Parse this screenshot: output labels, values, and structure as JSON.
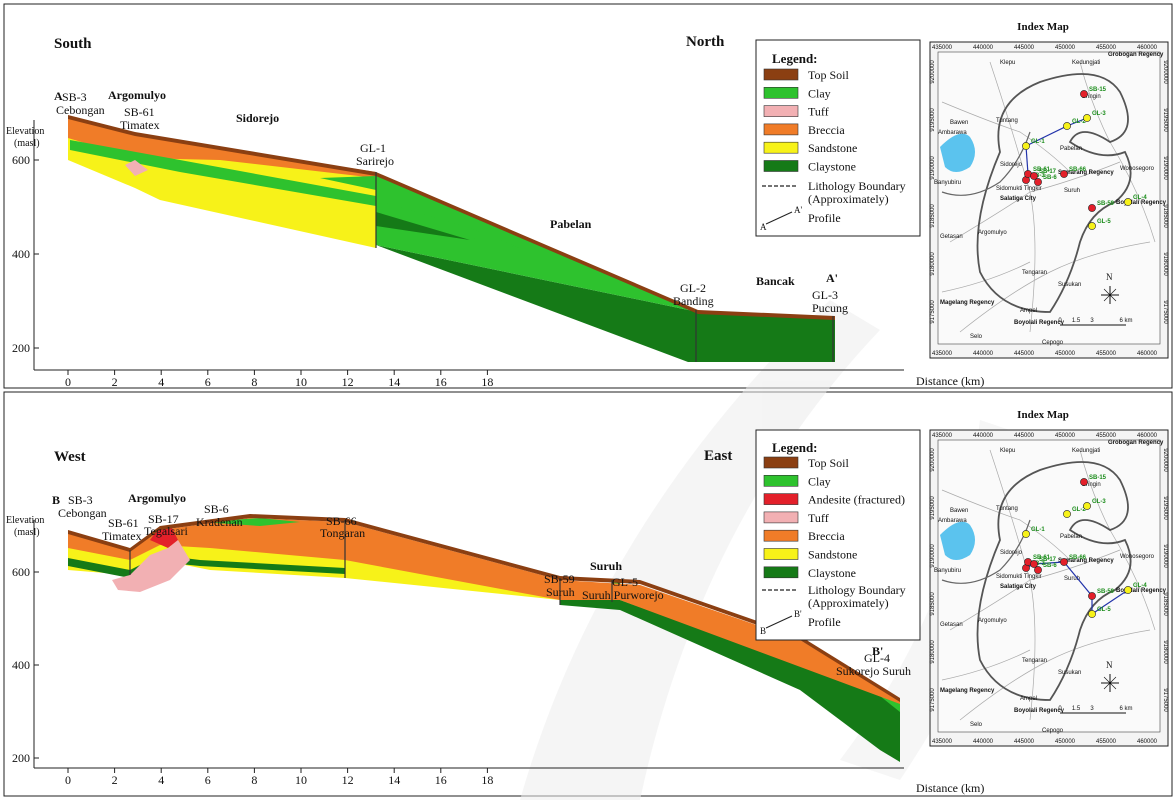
{
  "top": {
    "dir_left": "South",
    "dir_right": "North",
    "pt_start": "A",
    "pt_end": "A'",
    "y_axis_label": [
      "Elevation",
      "(masl)"
    ],
    "x_axis_label": "Distance (km)",
    "places": [
      "Argomulyo",
      "Sidorejo",
      "Pabelan",
      "Bancak"
    ],
    "wells": [
      {
        "name": "SB-3",
        "site": "Cebongan"
      },
      {
        "name": "SB-61",
        "site": "Timatex"
      },
      {
        "name": "GL-1",
        "site": "Sarirejo"
      },
      {
        "name": "GL-2",
        "site": "Banding"
      },
      {
        "name": "GL-3",
        "site": "Pucung"
      }
    ],
    "legend": {
      "title": "Legend:",
      "items": [
        {
          "label": "Top Soil",
          "color": "#8b3f12"
        },
        {
          "label": "Clay",
          "color": "#2ec22e"
        },
        {
          "label": "Tuff",
          "color": "#f2b0b3"
        },
        {
          "label": "Breccia",
          "color": "#f07c28"
        },
        {
          "label": "Sandstone",
          "color": "#f7f219"
        },
        {
          "label": "Claystone",
          "color": "#157a17"
        }
      ],
      "boundary": [
        "Lithology Boundary",
        "(Approximately)"
      ],
      "profile": "Profile",
      "profile_a": "A",
      "profile_b": "A'"
    }
  },
  "bottom": {
    "dir_left": "West",
    "dir_right": "East",
    "pt_start": "B",
    "pt_end": "B'",
    "y_axis_label": [
      "Elevation",
      "(masl)"
    ],
    "x_axis_label": "Distance (km)",
    "places": [
      "Argomulyo",
      "Suruh"
    ],
    "wells": [
      {
        "name": "SB-3",
        "site": "Cebongan"
      },
      {
        "name": "SB-61",
        "site": "Timatex"
      },
      {
        "name": "SB-17",
        "site": "Tegalsari"
      },
      {
        "name": "SB-6",
        "site": "Kradenan"
      },
      {
        "name": "SB-66",
        "site": "Tongaran"
      },
      {
        "name": "SB-59",
        "site": "Suruh"
      },
      {
        "name": "GL-5",
        "site": "Suruh Purworejo"
      },
      {
        "name": "GL-4",
        "site": "Sukorejo Suruh"
      }
    ],
    "legend": {
      "title": "Legend:",
      "items": [
        {
          "label": "Top Soil",
          "color": "#8b3f12"
        },
        {
          "label": "Clay",
          "color": "#2ec22e"
        },
        {
          "label": "Andesite (fractured)",
          "color": "#e3202a"
        },
        {
          "label": "Tuff",
          "color": "#f2b0b3"
        },
        {
          "label": "Breccia",
          "color": "#f07c28"
        },
        {
          "label": "Sandstone",
          "color": "#f7f219"
        },
        {
          "label": "Claystone",
          "color": "#157a17"
        }
      ],
      "boundary": [
        "Lithology Boundary",
        "(Approximately)"
      ],
      "profile": "Profile",
      "profile_a": "B",
      "profile_b": "B'"
    }
  },
  "x_ticks": [
    "0",
    "2",
    "4",
    "6",
    "8",
    "10",
    "12",
    "14",
    "16",
    "18"
  ],
  "y_ticks": [
    "200",
    "400",
    "600"
  ],
  "index_map": {
    "title": "Index Map",
    "eastings": [
      "435000",
      "440000",
      "445000",
      "450000",
      "455000",
      "460000"
    ],
    "northings": [
      "9200000",
      "9195000",
      "9190000",
      "9185000",
      "9180000",
      "9175000"
    ],
    "places": [
      "Klepu",
      "Kedungjati",
      "Grobogan Regency",
      "Bringin",
      "Bawen",
      "Ambarawa",
      "Tuntang",
      "Pabelan",
      "Semarang Regency",
      "Banyubiru",
      "Sidorejo",
      "Sidomukti Tingkir",
      "Wonosegoro",
      "Salatiga City",
      "Suruh",
      "Boyolali Regency",
      "Argomulyo",
      "Getasan",
      "Tengaran",
      "Susukan",
      "Magelang Regency",
      "Ampel",
      "Boyolali Regency",
      "Selo",
      "Cepogo"
    ],
    "wells": [
      "SB-15",
      "GL-2",
      "GL-3",
      "GL-1",
      "SB-3",
      "SB-61",
      "SB-17",
      "SB-6",
      "SB-66",
      "SB-59",
      "GL-4",
      "GL-5"
    ],
    "north": "N",
    "scale": [
      "0",
      "1.5",
      "3",
      "6 km"
    ]
  }
}
